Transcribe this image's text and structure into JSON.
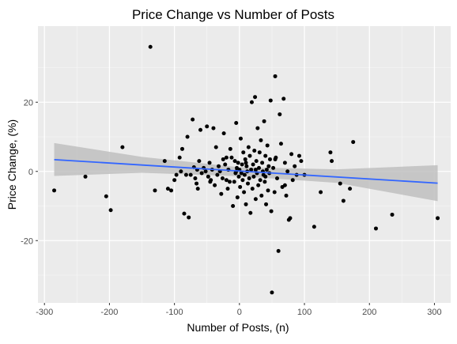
{
  "chart_data": {
    "type": "scatter",
    "title": "Price Change vs Number of Posts",
    "xlabel": "Number of Posts, (n)",
    "ylabel": "Price Change, (%)",
    "xlim": [
      -310,
      325
    ],
    "ylim": [
      -38,
      42
    ],
    "x_ticks": [
      -300,
      -200,
      -100,
      0,
      100,
      200,
      300
    ],
    "y_ticks": [
      -20,
      0,
      20
    ],
    "grid": true,
    "legend": "none",
    "colors": {
      "panel": "#ebebeb",
      "grid_major": "#ffffff",
      "grid_minor": "#f5f5f5",
      "point": "#000000",
      "smooth_line": "#3366ff",
      "ribbon": "#bfbfbf",
      "axis_text": "#4d4d4d"
    },
    "smooth": {
      "method": "lm",
      "line": [
        [
          -285,
          3.4
        ],
        [
          305,
          -3.4
        ]
      ],
      "band_upper": [
        [
          -285,
          8.2
        ],
        [
          -150,
          4.2
        ],
        [
          0,
          1.2
        ],
        [
          150,
          0.6
        ],
        [
          305,
          1.8
        ]
      ],
      "band_lower": [
        [
          -285,
          -1.3
        ],
        [
          -150,
          -0.4
        ],
        [
          0,
          -1.4
        ],
        [
          150,
          -3.3
        ],
        [
          305,
          -8.6
        ]
      ]
    },
    "points": [
      [
        -285,
        -5.5
      ],
      [
        -237,
        -1.5
      ],
      [
        -205,
        -7.2
      ],
      [
        -198,
        -11.2
      ],
      [
        -180,
        7.0
      ],
      [
        -137,
        36.0
      ],
      [
        -130,
        -5.5
      ],
      [
        -115,
        3.0
      ],
      [
        -110,
        -5.0
      ],
      [
        -105,
        -5.5
      ],
      [
        -100,
        -2.5
      ],
      [
        -97,
        -1.0
      ],
      [
        -92,
        4.0
      ],
      [
        -88,
        6.5
      ],
      [
        -85,
        -12.2
      ],
      [
        -82,
        -1.0
      ],
      [
        -80,
        10.0
      ],
      [
        -78,
        -13.3
      ],
      [
        -75,
        -1.0
      ],
      [
        -72,
        15.0
      ],
      [
        -70,
        1.2
      ],
      [
        -68,
        -2.0
      ],
      [
        -66,
        -3.5
      ],
      [
        -64,
        -5.0
      ],
      [
        -62,
        3.0
      ],
      [
        -60,
        12.0
      ],
      [
        -58,
        -0.5
      ],
      [
        -55,
        1.0
      ],
      [
        -52,
        0.0
      ],
      [
        -50,
        13.0
      ],
      [
        -48,
        -1.5
      ],
      [
        -46,
        2.5
      ],
      [
        -44,
        -2.5
      ],
      [
        -42,
        0.5
      ],
      [
        -40,
        12.5
      ],
      [
        -38,
        -4.0
      ],
      [
        -36,
        7.0
      ],
      [
        -34,
        -1.0
      ],
      [
        -32,
        1.5
      ],
      [
        -30,
        0.0
      ],
      [
        -28,
        -6.5
      ],
      [
        -26,
        -2.0
      ],
      [
        -25,
        3.5
      ],
      [
        -24,
        11.0
      ],
      [
        -22,
        2.0
      ],
      [
        -20,
        -2.5
      ],
      [
        -18,
        -5.0
      ],
      [
        -17,
        0.5
      ],
      [
        -15,
        -3.0
      ],
      [
        -14,
        6.5
      ],
      [
        -12,
        4.0
      ],
      [
        -10,
        -10.0
      ],
      [
        -8,
        -3.0
      ],
      [
        -7,
        3.0
      ],
      [
        -6,
        -0.5
      ],
      [
        -5,
        14.0
      ],
      [
        -4,
        1.0
      ],
      [
        -3,
        -7.5
      ],
      [
        -2,
        2.5
      ],
      [
        -1,
        -1.5
      ],
      [
        0,
        0.5
      ],
      [
        1,
        -4.5
      ],
      [
        2,
        9.5
      ],
      [
        3,
        -0.5
      ],
      [
        4,
        2.0
      ],
      [
        5,
        -2.5
      ],
      [
        6,
        5.5
      ],
      [
        7,
        -6.0
      ],
      [
        8,
        -1.0
      ],
      [
        9,
        3.5
      ],
      [
        10,
        -9.5
      ],
      [
        11,
        1.5
      ],
      [
        12,
        0.0
      ],
      [
        13,
        -3.5
      ],
      [
        14,
        7.0
      ],
      [
        15,
        -2.0
      ],
      [
        16,
        4.5
      ],
      [
        17,
        -12.0
      ],
      [
        18,
        0.5
      ],
      [
        19,
        20.0
      ],
      [
        20,
        -5.0
      ],
      [
        21,
        2.0
      ],
      [
        22,
        -1.5
      ],
      [
        23,
        6.0
      ],
      [
        24,
        21.5
      ],
      [
        25,
        -8.0
      ],
      [
        26,
        3.0
      ],
      [
        27,
        -0.5
      ],
      [
        28,
        12.5
      ],
      [
        29,
        -4.0
      ],
      [
        30,
        1.0
      ],
      [
        31,
        5.5
      ],
      [
        32,
        -2.5
      ],
      [
        33,
        9.0
      ],
      [
        34,
        -7.0
      ],
      [
        35,
        2.5
      ],
      [
        36,
        0.0
      ],
      [
        37,
        -1.0
      ],
      [
        38,
        14.5
      ],
      [
        39,
        -3.0
      ],
      [
        40,
        4.5
      ],
      [
        41,
        -9.5
      ],
      [
        42,
        0.5
      ],
      [
        43,
        7.5
      ],
      [
        44,
        -5.5
      ],
      [
        45,
        1.5
      ],
      [
        46,
        -0.5
      ],
      [
        47,
        3.5
      ],
      [
        48,
        20.5
      ],
      [
        49,
        -11.5
      ],
      [
        50,
        -35.0
      ],
      [
        52,
        1.0
      ],
      [
        54,
        -6.0
      ],
      [
        55,
        27.5
      ],
      [
        56,
        4.0
      ],
      [
        58,
        -2.0
      ],
      [
        60,
        -23.0
      ],
      [
        62,
        16.5
      ],
      [
        64,
        8.0
      ],
      [
        66,
        -4.5
      ],
      [
        68,
        21.0
      ],
      [
        70,
        2.5
      ],
      [
        72,
        -7.0
      ],
      [
        74,
        0.0
      ],
      [
        76,
        -14.0
      ],
      [
        78,
        -13.5
      ],
      [
        80,
        5.0
      ],
      [
        82,
        -2.5
      ],
      [
        85,
        1.5
      ],
      [
        88,
        -1.0
      ],
      [
        92,
        4.5
      ],
      [
        95,
        3.0
      ],
      [
        100,
        -1.0
      ],
      [
        115,
        -16.0
      ],
      [
        125,
        -6.0
      ],
      [
        140,
        5.5
      ],
      [
        142,
        3.0
      ],
      [
        155,
        -3.5
      ],
      [
        160,
        -8.5
      ],
      [
        170,
        -5.0
      ],
      [
        175,
        8.5
      ],
      [
        210,
        -16.5
      ],
      [
        235,
        -12.5
      ],
      [
        305,
        -13.5
      ],
      [
        -90,
        0.0
      ],
      [
        -65,
        0.5
      ],
      [
        -45,
        -3.0
      ],
      [
        -20,
        4.0
      ],
      [
        -5,
        0.0
      ],
      [
        10,
        2.5
      ],
      [
        25,
        0.5
      ],
      [
        40,
        -1.5
      ],
      [
        55,
        3.5
      ],
      [
        70,
        -4.0
      ]
    ]
  }
}
